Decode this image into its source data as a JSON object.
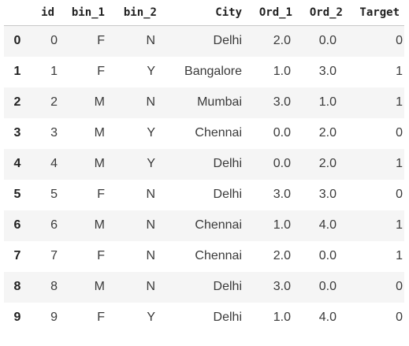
{
  "dataframe": {
    "columns": [
      "",
      "id",
      "bin_1",
      "bin_2",
      "City",
      "Ord_1",
      "Ord_2",
      "Target"
    ],
    "rows": [
      {
        "index": "0",
        "cells": [
          "0",
          "F",
          "N",
          "Delhi",
          "2.0",
          "0.0",
          "0"
        ]
      },
      {
        "index": "1",
        "cells": [
          "1",
          "F",
          "Y",
          "Bangalore",
          "1.0",
          "3.0",
          "1"
        ]
      },
      {
        "index": "2",
        "cells": [
          "2",
          "M",
          "N",
          "Mumbai",
          "3.0",
          "1.0",
          "1"
        ]
      },
      {
        "index": "3",
        "cells": [
          "3",
          "M",
          "Y",
          "Chennai",
          "0.0",
          "2.0",
          "0"
        ]
      },
      {
        "index": "4",
        "cells": [
          "4",
          "M",
          "Y",
          "Delhi",
          "0.0",
          "2.0",
          "1"
        ]
      },
      {
        "index": "5",
        "cells": [
          "5",
          "F",
          "N",
          "Delhi",
          "3.0",
          "3.0",
          "0"
        ]
      },
      {
        "index": "6",
        "cells": [
          "6",
          "M",
          "N",
          "Chennai",
          "1.0",
          "4.0",
          "1"
        ]
      },
      {
        "index": "7",
        "cells": [
          "7",
          "F",
          "N",
          "Chennai",
          "2.0",
          "0.0",
          "1"
        ]
      },
      {
        "index": "8",
        "cells": [
          "8",
          "M",
          "N",
          "Delhi",
          "3.0",
          "0.0",
          "0"
        ]
      },
      {
        "index": "9",
        "cells": [
          "9",
          "F",
          "Y",
          "Delhi",
          "1.0",
          "4.0",
          "0"
        ]
      }
    ]
  },
  "colors": {
    "stripe": "#f5f5f5",
    "background": "#ffffff",
    "header_rule": "#c8c8c8"
  }
}
